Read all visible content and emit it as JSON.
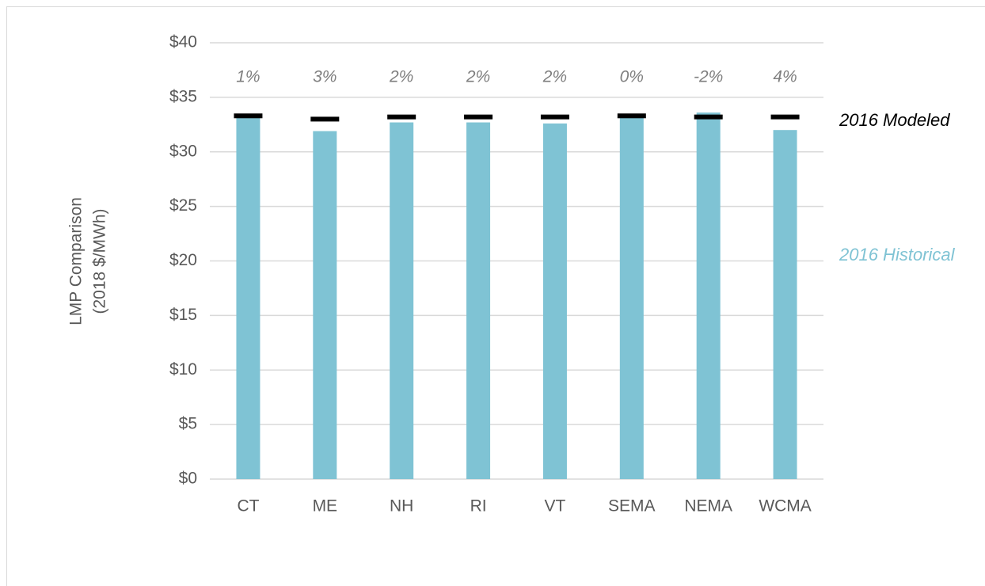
{
  "chart_data": {
    "type": "bar",
    "y_axis_label": [
      "LMP Comparison",
      "(2018 $/MWh)"
    ],
    "categories": [
      "CT",
      "ME",
      "NH",
      "RI",
      "VT",
      "SEMA",
      "NEMA",
      "WCMA"
    ],
    "series": [
      {
        "name": "2016 Historical",
        "color": "#7fc3d4",
        "values": [
          33.1,
          31.9,
          32.7,
          32.7,
          32.6,
          33.2,
          33.6,
          32.0
        ]
      },
      {
        "name": "2016 Modeled",
        "color": "#000000",
        "values": [
          33.3,
          33.0,
          33.2,
          33.2,
          33.2,
          33.3,
          33.2,
          33.2
        ]
      }
    ],
    "annotations": [
      "1%",
      "3%",
      "2%",
      "2%",
      "2%",
      "0%",
      "-2%",
      "4%"
    ],
    "ylim": [
      0,
      40
    ],
    "yticks": [
      {
        "value": 0,
        "label": "$0"
      },
      {
        "value": 5,
        "label": "$5"
      },
      {
        "value": 10,
        "label": "$10"
      },
      {
        "value": 15,
        "label": "$15"
      },
      {
        "value": 20,
        "label": "$20"
      },
      {
        "value": 25,
        "label": "$25"
      },
      {
        "value": 30,
        "label": "$30"
      },
      {
        "value": 35,
        "label": "$35"
      },
      {
        "value": 40,
        "label": "$40"
      }
    ],
    "grid": true
  }
}
